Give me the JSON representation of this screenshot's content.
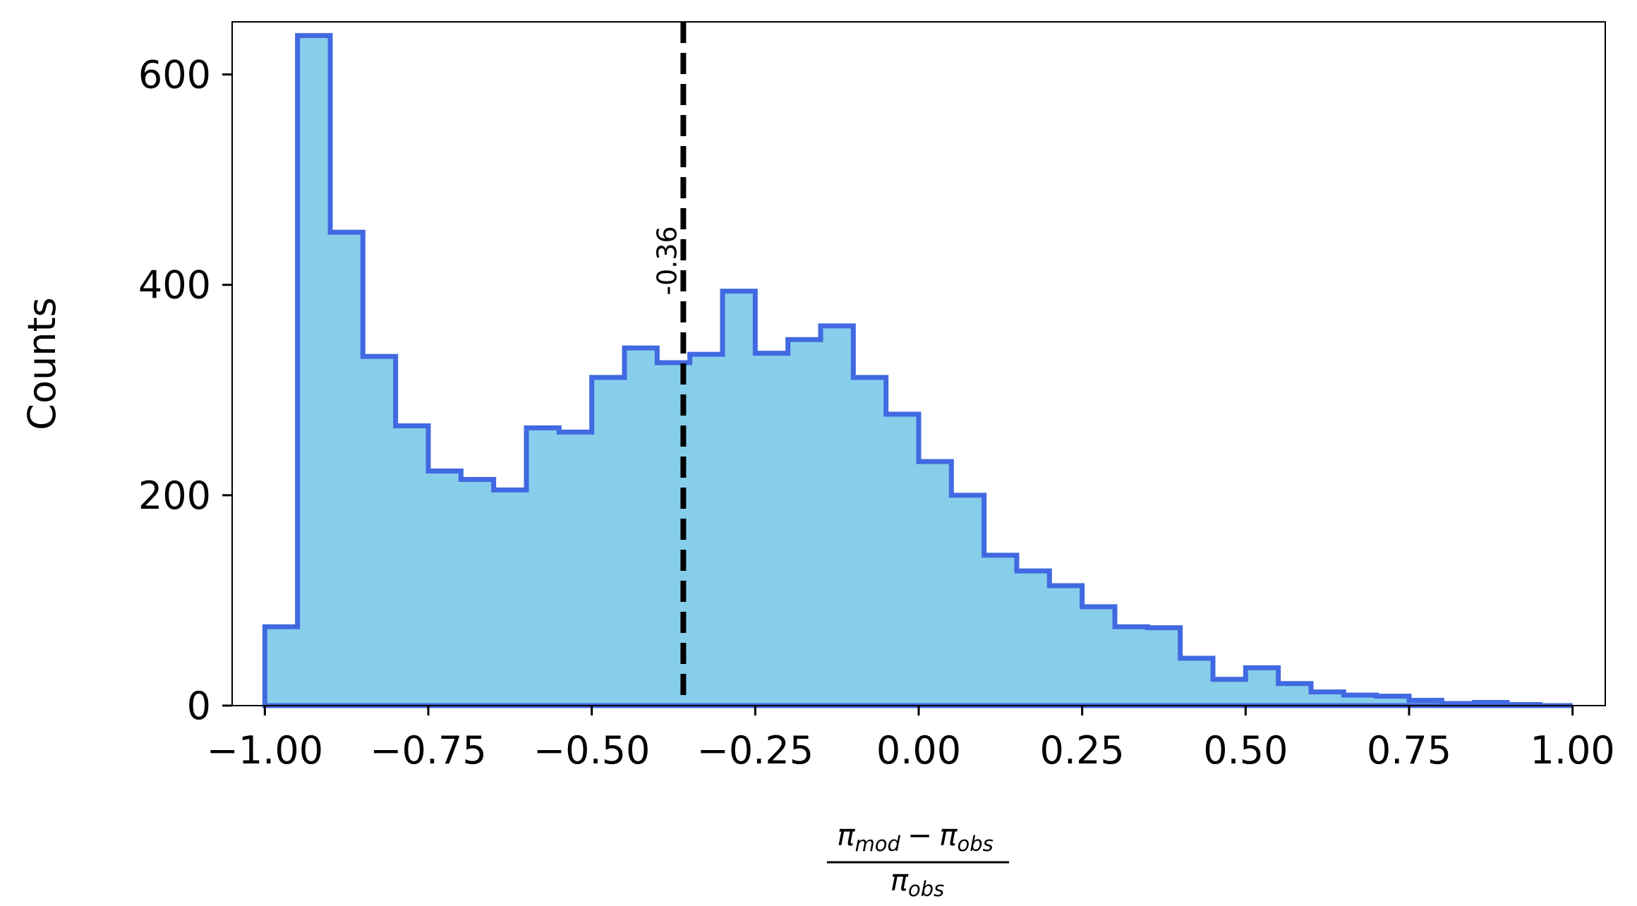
{
  "chart_data": {
    "type": "bar",
    "histogram": true,
    "bin_edges": [
      -1.0,
      -0.95,
      -0.9,
      -0.85,
      -0.8,
      -0.75,
      -0.7,
      -0.65,
      -0.6,
      -0.55,
      -0.5,
      -0.45,
      -0.4,
      -0.35,
      -0.3,
      -0.25,
      -0.2,
      -0.15,
      -0.1,
      -0.05,
      0.0,
      0.05,
      0.1,
      0.15,
      0.2,
      0.25,
      0.3,
      0.35,
      0.4,
      0.45,
      0.5,
      0.55,
      0.6,
      0.65,
      0.7,
      0.75,
      0.8,
      0.85,
      0.9,
      0.95,
      1.0
    ],
    "values": [
      75,
      637,
      450,
      332,
      266,
      223,
      215,
      205,
      264,
      260,
      312,
      340,
      326,
      334,
      394,
      335,
      348,
      361,
      312,
      277,
      232,
      200,
      143,
      128,
      114,
      94,
      75,
      74,
      45,
      25,
      36,
      21,
      13,
      10,
      9,
      5,
      2,
      3,
      1,
      0
    ],
    "xlim": [
      -1.05,
      1.05
    ],
    "ylim": [
      0,
      650
    ],
    "xticks": [
      -1.0,
      -0.75,
      -0.5,
      -0.25,
      0.0,
      0.25,
      0.5,
      0.75,
      1.0
    ],
    "xtick_labels": [
      "−1.00",
      "−0.75",
      "−0.50",
      "−0.25",
      "0.00",
      "0.25",
      "0.50",
      "0.75",
      "1.00"
    ],
    "yticks": [
      0,
      200,
      400,
      600
    ],
    "ytick_labels": [
      "0",
      "200",
      "400",
      "600"
    ],
    "ylabel": "Counts",
    "xlabel": {
      "numerator": {
        "a": "π",
        "a_sub": "mod",
        "op": "−",
        "b": "π",
        "b_sub": "obs"
      },
      "denominator": {
        "a": "π",
        "a_sub": "obs"
      }
    },
    "mean_line": {
      "x": -0.36,
      "label": "-0.36",
      "style": "dashed",
      "color": "#000000"
    },
    "fill_color": "#87ceeb",
    "edge_color": "#4169e1",
    "grid": false,
    "legend": "none"
  }
}
